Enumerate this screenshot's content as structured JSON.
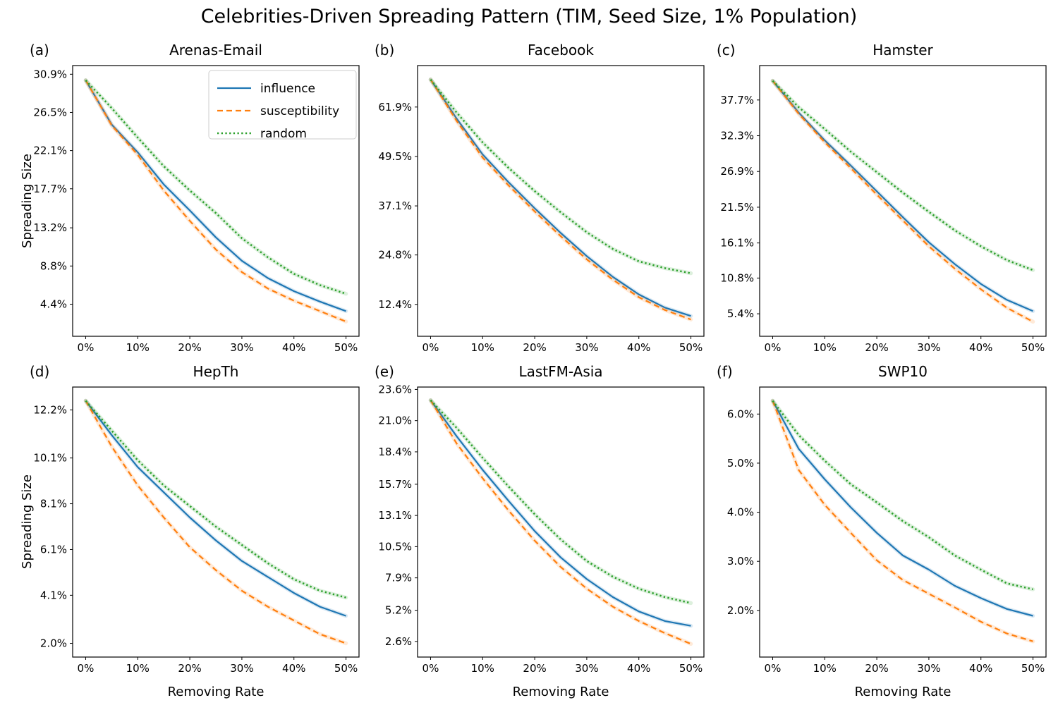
{
  "figure": {
    "title": "Celebrities-Driven Spreading Pattern (TIM, Seed Size, 1% Population)",
    "x_axis_label": "Removing Rate",
    "y_axis_label": "Spreading Size",
    "x_tick_labels": [
      "0%",
      "10%",
      "20%",
      "30%",
      "40%",
      "50%"
    ],
    "xlim": [
      -2.5,
      52.5
    ],
    "x": [
      0,
      5,
      10,
      15,
      20,
      25,
      30,
      35,
      40,
      45,
      50
    ]
  },
  "legend": {
    "location": "upper right of panel (a)",
    "entries": [
      {
        "label": "influence",
        "color": "#1f77b4",
        "dash": "solid"
      },
      {
        "label": "susceptibility",
        "color": "#ff7f0e",
        "dash": "dashed"
      },
      {
        "label": "random",
        "color": "#2ca02c",
        "dash": "dotted"
      }
    ]
  },
  "chart_data": [
    {
      "tag": "(a)",
      "title": "Arenas-Email",
      "type": "line",
      "ylim": [
        0.7,
        31.9
      ],
      "y_tick_labels": [
        "30.9%",
        "26.5%",
        "22.1%",
        "17.7%",
        "13.2%",
        "8.8%",
        "4.4%"
      ],
      "series": [
        {
          "name": "influence",
          "values": [
            30.2,
            25.1,
            21.9,
            18.2,
            15.2,
            12.1,
            9.4,
            7.4,
            5.9,
            4.7,
            3.6
          ]
        },
        {
          "name": "susceptibility",
          "values": [
            30.2,
            25.0,
            21.6,
            17.5,
            14.0,
            10.7,
            8.1,
            6.2,
            4.8,
            3.6,
            2.4
          ]
        },
        {
          "name": "random",
          "values": [
            30.2,
            27.0,
            23.6,
            20.3,
            17.5,
            14.9,
            12.0,
            9.8,
            7.9,
            6.6,
            5.6
          ]
        }
      ]
    },
    {
      "tag": "(b)",
      "title": "Facebook",
      "type": "line",
      "ylim": [
        4.4,
        72.3
      ],
      "y_tick_labels": [
        "61.9%",
        "49.5%",
        "37.1%",
        "24.8%",
        "12.4%"
      ],
      "series": [
        {
          "name": "influence",
          "values": [
            68.8,
            59.0,
            50.0,
            43.0,
            36.5,
            30.3,
            24.5,
            19.3,
            14.9,
            11.6,
            9.5
          ]
        },
        {
          "name": "susceptibility",
          "values": [
            68.8,
            58.4,
            49.2,
            42.2,
            35.7,
            29.5,
            23.7,
            18.6,
            14.2,
            11.0,
            8.6
          ]
        },
        {
          "name": "random",
          "values": [
            68.8,
            60.5,
            53.0,
            46.6,
            40.8,
            35.5,
            30.5,
            26.3,
            23.2,
            21.5,
            20.2
          ]
        }
      ]
    },
    {
      "tag": "(c)",
      "title": "Hamster",
      "type": "line",
      "ylim": [
        2.0,
        42.9
      ],
      "y_tick_labels": [
        "37.7%",
        "32.3%",
        "26.9%",
        "21.5%",
        "16.1%",
        "10.8%",
        "5.4%"
      ],
      "series": [
        {
          "name": "influence",
          "values": [
            40.6,
            35.8,
            31.6,
            27.8,
            23.9,
            20.0,
            16.2,
            12.9,
            9.9,
            7.5,
            5.8
          ]
        },
        {
          "name": "susceptibility",
          "values": [
            40.6,
            35.6,
            31.3,
            27.4,
            23.4,
            19.5,
            15.6,
            12.2,
            9.1,
            6.3,
            4.2
          ]
        },
        {
          "name": "random",
          "values": [
            40.6,
            36.6,
            33.3,
            29.9,
            26.8,
            23.7,
            20.8,
            18.0,
            15.6,
            13.5,
            12.0
          ]
        }
      ]
    },
    {
      "tag": "(d)",
      "title": "HepTh",
      "type": "line",
      "ylim": [
        1.4,
        13.2
      ],
      "y_tick_labels": [
        "12.2%",
        "10.1%",
        "8.1%",
        "6.1%",
        "4.1%",
        "2.0%"
      ],
      "series": [
        {
          "name": "influence",
          "values": [
            12.6,
            11.1,
            9.7,
            8.6,
            7.5,
            6.5,
            5.6,
            4.9,
            4.2,
            3.6,
            3.2
          ]
        },
        {
          "name": "susceptibility",
          "values": [
            12.6,
            10.6,
            8.9,
            7.5,
            6.2,
            5.2,
            4.3,
            3.6,
            3.0,
            2.4,
            2.0
          ]
        },
        {
          "name": "random",
          "values": [
            12.6,
            11.3,
            10.0,
            8.9,
            8.0,
            7.1,
            6.3,
            5.5,
            4.8,
            4.3,
            4.0
          ]
        }
      ]
    },
    {
      "tag": "(e)",
      "title": "LastFM-Asia",
      "type": "line",
      "ylim": [
        1.3,
        23.8
      ],
      "y_tick_labels": [
        "23.6%",
        "21.0%",
        "18.4%",
        "15.7%",
        "13.1%",
        "10.5%",
        "7.9%",
        "5.2%",
        "2.6%"
      ],
      "series": [
        {
          "name": "influence",
          "values": [
            22.7,
            19.7,
            16.9,
            14.3,
            11.8,
            9.6,
            7.8,
            6.3,
            5.1,
            4.3,
            3.9
          ]
        },
        {
          "name": "susceptibility",
          "values": [
            22.7,
            19.1,
            16.2,
            13.5,
            11.0,
            8.8,
            7.0,
            5.5,
            4.3,
            3.3,
            2.4
          ]
        },
        {
          "name": "random",
          "values": [
            22.7,
            20.4,
            17.9,
            15.5,
            13.2,
            11.1,
            9.3,
            8.0,
            7.0,
            6.3,
            5.8
          ]
        }
      ]
    },
    {
      "tag": "(f)",
      "title": "SWP10",
      "type": "line",
      "ylim": [
        1.05,
        6.55
      ],
      "y_tick_labels": [
        "6.0%",
        "5.0%",
        "4.0%",
        "3.0%",
        "2.0%"
      ],
      "series": [
        {
          "name": "influence",
          "values": [
            6.27,
            5.29,
            4.67,
            4.1,
            3.58,
            3.12,
            2.83,
            2.5,
            2.25,
            2.03,
            1.89
          ]
        },
        {
          "name": "susceptibility",
          "values": [
            6.27,
            4.86,
            4.15,
            3.58,
            3.02,
            2.62,
            2.34,
            2.06,
            1.77,
            1.53,
            1.37
          ]
        },
        {
          "name": "random",
          "values": [
            6.27,
            5.57,
            5.05,
            4.57,
            4.2,
            3.82,
            3.49,
            3.12,
            2.83,
            2.55,
            2.43
          ]
        }
      ]
    }
  ]
}
